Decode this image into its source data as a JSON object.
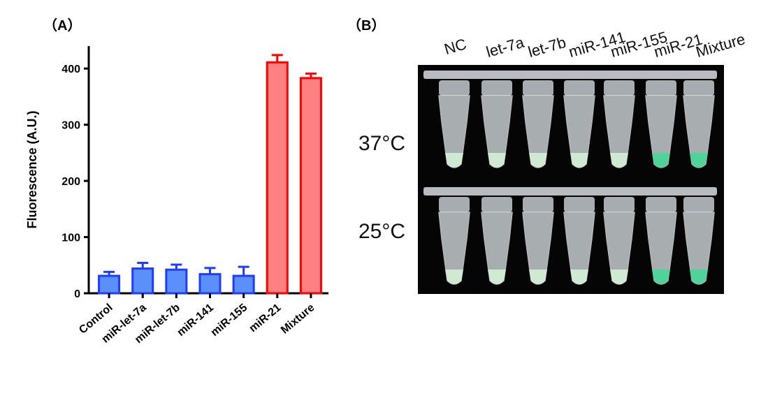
{
  "panels": {
    "a_label": "（A）",
    "b_label": "（B）"
  },
  "chart_data": {
    "type": "bar",
    "ylabel": "Fluorescence (A.U.)",
    "xlabel": "",
    "ylim": [
      0,
      440
    ],
    "yticks": [
      0,
      100,
      200,
      300,
      400
    ],
    "categories": [
      "Control",
      "miR-let-7a",
      "miR-let-7b",
      "miR-141",
      "miR-155",
      "miR-21",
      "Mixture"
    ],
    "values": [
      31,
      44,
      42,
      34,
      31,
      411,
      383
    ],
    "errors": [
      7,
      10,
      9,
      11,
      16,
      13,
      8
    ],
    "bar_colors": [
      "#5b8ff9",
      "#5b8ff9",
      "#5b8ff9",
      "#5b8ff9",
      "#5b8ff9",
      "#ff8080",
      "#ff8080"
    ],
    "edge_colors": [
      "#1f3cff",
      "#1f3cff",
      "#1f3cff",
      "#1f3cff",
      "#1f3cff",
      "#ff0000",
      "#ff0000"
    ]
  },
  "photo": {
    "tube_labels": [
      "NC",
      "let-7a",
      "let-7b",
      "miR-141",
      "miR-155",
      "miR-21",
      "Mixture"
    ],
    "temp_top": "37°C",
    "temp_bottom": "25°C",
    "tube_liquid_colors": [
      "#cfe9d2",
      "#cfe9d2",
      "#cfe9d2",
      "#cfe9d2",
      "#cfe9d2",
      "#4fd39a",
      "#4fd39a"
    ]
  }
}
